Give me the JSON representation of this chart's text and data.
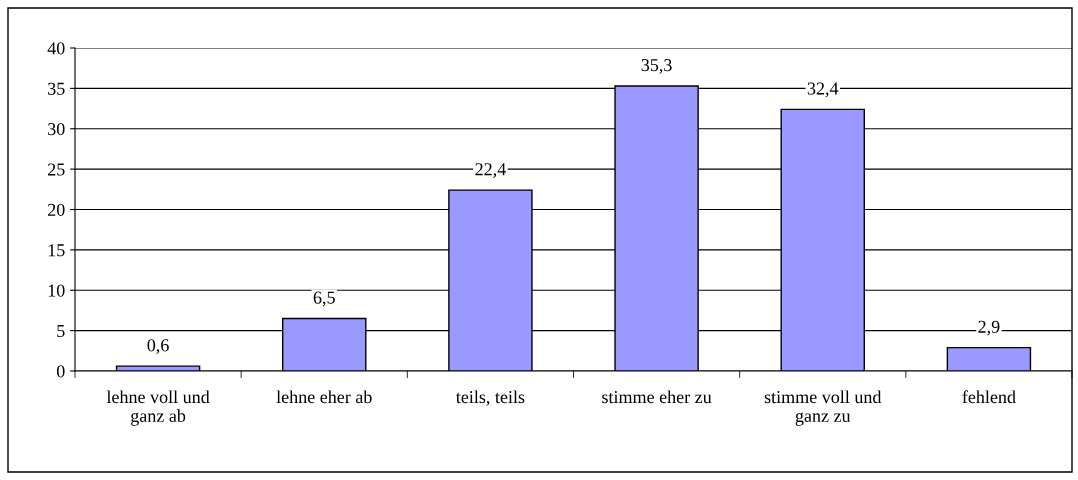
{
  "chart_data": {
    "type": "bar",
    "categories": [
      "lehne voll und\nganz ab",
      "lehne eher ab",
      "teils, teils",
      "stimme eher zu",
      "stimme voll und\nganz zu",
      "fehlend"
    ],
    "values": [
      0.6,
      6.5,
      22.4,
      35.3,
      32.4,
      2.9
    ],
    "value_labels": [
      "0,6",
      "6,5",
      "22,4",
      "35,3",
      "32,4",
      "2,9"
    ],
    "color": "#9999ff",
    "ylim": [
      0,
      40
    ],
    "yticks": [
      0,
      5,
      10,
      15,
      20,
      25,
      30,
      35,
      40
    ],
    "grid": "y",
    "legend": false
  }
}
